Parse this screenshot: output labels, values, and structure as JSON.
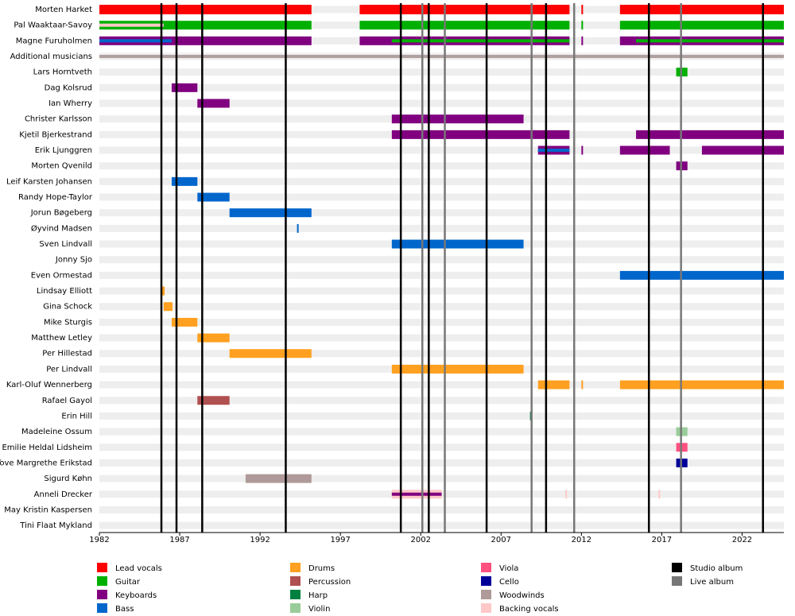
{
  "chart_data": {
    "type": "timeline",
    "xlim": [
      1982,
      2024.6
    ],
    "xticks": [
      1982,
      1987,
      1992,
      1997,
      2002,
      2007,
      2012,
      2017,
      2022
    ],
    "roles": [
      {
        "name": "Lead vocals",
        "color": "#ff0000"
      },
      {
        "name": "Guitar",
        "color": "#00b000"
      },
      {
        "name": "Keyboards",
        "color": "#800080"
      },
      {
        "name": "Bass",
        "color": "#0066cc"
      },
      {
        "name": "Drums",
        "color": "#ffa020"
      },
      {
        "name": "Percussion",
        "color": "#b05050"
      },
      {
        "name": "Harp",
        "color": "#008040"
      },
      {
        "name": "Violin",
        "color": "#99cc99"
      },
      {
        "name": "Viola",
        "color": "#ff5080"
      },
      {
        "name": "Cello",
        "color": "#000099"
      },
      {
        "name": "Woodwinds",
        "color": "#b09999"
      },
      {
        "name": "Backing vocals",
        "color": "#ffc8c8"
      }
    ],
    "events": [
      {
        "name": "Studio album",
        "color": "#000000",
        "dates": [
          1985.86,
          1986.8,
          1988.4,
          1993.6,
          2000.76,
          2002.5,
          2006.1,
          2009.8,
          2016.2,
          2023.3
        ]
      },
      {
        "name": "Live album",
        "color": "#777777",
        "dates": [
          2002.1,
          2003.5,
          2008.9,
          2011.55,
          2018.2
        ]
      }
    ],
    "members": [
      {
        "name": "Morten Harket",
        "segments": [
          {
            "role": "Lead vocals",
            "start": 1982,
            "end": 1995.2
          },
          {
            "role": "Lead vocals",
            "start": 1998.2,
            "end": 2011.26
          },
          {
            "role": "Lead vocals",
            "start": 2012.0,
            "end": 2012.1
          },
          {
            "role": "Lead vocals",
            "start": 2014.4,
            "end": 2024.6
          }
        ]
      },
      {
        "name": "Pal Waaktaar-Savoy",
        "segments": [
          {
            "role": "Guitar",
            "start": 1982,
            "end": 1995.2
          },
          {
            "role": "Guitar",
            "start": 1998.2,
            "end": 2011.26
          },
          {
            "role": "Guitar",
            "start": 2012.0,
            "end": 2012.1
          },
          {
            "role": "Guitar",
            "start": 2014.4,
            "end": 2024.6
          },
          {
            "role": "Backing vocals",
            "start": 1982,
            "end": 1986
          }
        ]
      },
      {
        "name": "Magne Furuholmen",
        "segments": [
          {
            "role": "Keyboards",
            "start": 1982,
            "end": 1995.2
          },
          {
            "role": "Keyboards",
            "start": 1998.2,
            "end": 2011.26
          },
          {
            "role": "Keyboards",
            "start": 2012.0,
            "end": 2012.1
          },
          {
            "role": "Keyboards",
            "start": 2014.4,
            "end": 2024.6
          },
          {
            "role": "Bass",
            "start": 1982,
            "end": 1986.5
          },
          {
            "role": "Guitar",
            "start": 2000.2,
            "end": 2011.26
          },
          {
            "role": "Guitar",
            "start": 2015.4,
            "end": 2024.6
          }
        ]
      },
      {
        "name": "Additional musicians",
        "segments": []
      },
      {
        "name": "Lars Horntveth",
        "segments": [
          {
            "role": "Guitar",
            "start": 2017.9,
            "end": 2018.6
          }
        ]
      },
      {
        "name": "Dag Kolsrud",
        "segments": [
          {
            "role": "Keyboards",
            "start": 1986.5,
            "end": 1988.1
          }
        ]
      },
      {
        "name": "Ian Wherry",
        "segments": [
          {
            "role": "Keyboards",
            "start": 1988.1,
            "end": 1990.1
          }
        ]
      },
      {
        "name": "Christer Karlsson",
        "segments": [
          {
            "role": "Keyboards",
            "start": 2000.2,
            "end": 2008.4
          }
        ]
      },
      {
        "name": "Kjetil Bjerkestrand",
        "segments": [
          {
            "role": "Keyboards",
            "start": 2000.2,
            "end": 2011.26
          },
          {
            "role": "Keyboards",
            "start": 2015.4,
            "end": 2024.6
          }
        ]
      },
      {
        "name": "Erik Ljunggren",
        "segments": [
          {
            "role": "Keyboards",
            "start": 2009.3,
            "end": 2011.26
          },
          {
            "role": "Keyboards",
            "start": 2012.0,
            "end": 2012.1
          },
          {
            "role": "Keyboards",
            "start": 2014.4,
            "end": 2017.5
          },
          {
            "role": "Keyboards",
            "start": 2019.5,
            "end": 2024.6
          },
          {
            "role": "Bass",
            "start": 2009.3,
            "end": 2011.26
          }
        ]
      },
      {
        "name": "Morten Qvenild",
        "segments": [
          {
            "role": "Keyboards",
            "start": 2017.9,
            "end": 2018.6
          }
        ]
      },
      {
        "name": "Leif Karsten Johansen",
        "segments": [
          {
            "role": "Bass",
            "start": 1986.5,
            "end": 1988.1
          }
        ]
      },
      {
        "name": "Randy Hope-Taylor",
        "segments": [
          {
            "role": "Bass",
            "start": 1988.1,
            "end": 1990.1
          }
        ]
      },
      {
        "name": "Jorun Bøgeberg",
        "segments": [
          {
            "role": "Bass",
            "start": 1990.1,
            "end": 1995.2
          }
        ]
      },
      {
        "name": "Øyvind Madsen",
        "segments": [
          {
            "role": "Bass",
            "start": 1994.3,
            "end": 1994.4
          }
        ]
      },
      {
        "name": "Sven Lindvall",
        "segments": [
          {
            "role": "Bass",
            "start": 2000.2,
            "end": 2008.4
          }
        ]
      },
      {
        "name": "Jonny Sjo",
        "segments": []
      },
      {
        "name": "Even Ormestad",
        "segments": [
          {
            "role": "Bass",
            "start": 2014.4,
            "end": 2024.6
          }
        ]
      },
      {
        "name": "Lindsay Elliott",
        "segments": [
          {
            "role": "Drums",
            "start": 1985.86,
            "end": 1986.06
          }
        ]
      },
      {
        "name": "Gina Schock",
        "segments": [
          {
            "role": "Drums",
            "start": 1986,
            "end": 1986.55
          }
        ]
      },
      {
        "name": "Mike Sturgis",
        "segments": [
          {
            "role": "Drums",
            "start": 1986.5,
            "end": 1988.1
          }
        ]
      },
      {
        "name": "Matthew Letley",
        "segments": [
          {
            "role": "Drums",
            "start": 1988.1,
            "end": 1990.1
          }
        ]
      },
      {
        "name": "Per Hillestad",
        "segments": [
          {
            "role": "Drums",
            "start": 1990.1,
            "end": 1995.2
          }
        ]
      },
      {
        "name": "Per Lindvall",
        "segments": [
          {
            "role": "Drums",
            "start": 2000.2,
            "end": 2008.4
          }
        ]
      },
      {
        "name": "Karl-Oluf Wennerberg",
        "segments": [
          {
            "role": "Drums",
            "start": 2009.3,
            "end": 2011.26
          },
          {
            "role": "Drums",
            "start": 2012.0,
            "end": 2012.1
          },
          {
            "role": "Drums",
            "start": 2014.4,
            "end": 2024.6
          }
        ]
      },
      {
        "name": "Rafael Gayol",
        "segments": [
          {
            "role": "Percussion",
            "start": 1988.1,
            "end": 1990.1
          }
        ]
      },
      {
        "name": "Erin Hill",
        "segments": [
          {
            "role": "Harp",
            "start": 2008.8,
            "end": 2008.85
          }
        ]
      },
      {
        "name": "Madeleine Ossum",
        "segments": [
          {
            "role": "Violin",
            "start": 2017.9,
            "end": 2018.6
          }
        ]
      },
      {
        "name": "Emilie Heldal Lidsheim",
        "segments": [
          {
            "role": "Viola",
            "start": 2017.9,
            "end": 2018.6
          }
        ]
      },
      {
        "name": "Tove Margrethe Erikstad",
        "segments": [
          {
            "role": "Cello",
            "start": 2017.9,
            "end": 2018.6
          }
        ]
      },
      {
        "name": "Sigurd Køhn",
        "segments": [
          {
            "role": "Woodwinds",
            "start": 1991.1,
            "end": 1995.2
          }
        ]
      },
      {
        "name": "Anneli Drecker",
        "segments": [
          {
            "role": "Backing vocals",
            "start": 2000.2,
            "end": 2003.3
          },
          {
            "role": "Backing vocals",
            "start": 2011.0,
            "end": 2011.1
          },
          {
            "role": "Backing vocals",
            "start": 2016.8,
            "end": 2016.9
          },
          {
            "role": "Keyboards",
            "start": 2000.2,
            "end": 2003.3
          }
        ]
      },
      {
        "name": "May Kristin Kaspersen",
        "segments": []
      },
      {
        "name": "Tini Flaat Mykland",
        "segments": []
      }
    ]
  }
}
